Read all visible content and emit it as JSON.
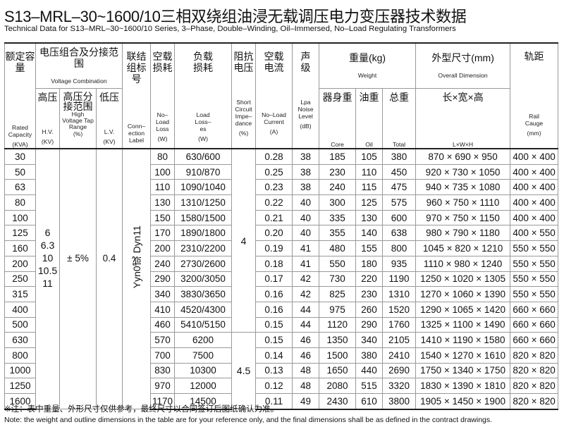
{
  "title": "S13–MRL–30~1600/10三相双绕组油浸无载调压电力变压器技术数据",
  "subtitle": "Technical Data for S13–MRL–30~1600/10 Series, 3–Phase, Double–Winding, Oil–Immersed, No–Load Regulating Transformers",
  "headers": {
    "capacity": {
      "zh": "额定容量",
      "en": "Rated Capacity",
      "unit": "(KVA)"
    },
    "voltage": {
      "zh": "电压组合及分接范围",
      "en": "Voltage Combination"
    },
    "hv": {
      "zh": "高压",
      "en": "H.V.",
      "unit": "(KV)"
    },
    "tap": {
      "zh": "高压分接范围",
      "en": "High Voltage Tap Range",
      "unit": "(%)"
    },
    "lv": {
      "zh": "低压",
      "en": "L.V.",
      "unit": "(KV)"
    },
    "connection": {
      "zh": "联结组标号",
      "en": "Conn–ection Label"
    },
    "noload_loss": {
      "zh": "空载损耗",
      "en": "No–Load Loss",
      "unit": "(W)"
    },
    "load_loss": {
      "zh": "负载损耗",
      "en": "Load Loss–es",
      "unit": "(W)"
    },
    "impedance": {
      "zh": "阻抗电压",
      "en": "Short Circuit Impe–dance",
      "unit": "(%)"
    },
    "noload_current": {
      "zh": "空载电流",
      "en": "No–Load Current",
      "unit": "(A)"
    },
    "noise": {
      "zh": "声级",
      "en": "Lpa Noise Level",
      "unit": "(dB)"
    },
    "weight": {
      "zh": "重量(kg)",
      "en": "Weight"
    },
    "core": {
      "zh": "器身重",
      "en": "Core"
    },
    "oil": {
      "zh": "油重",
      "en": "Oil"
    },
    "total": {
      "zh": "总重",
      "en": "Total"
    },
    "dimension": {
      "zh": "外型尺寸(mm)",
      "en": "Overall Dimension"
    },
    "lwh": {
      "zh": "长×宽×高",
      "en": "L×W×H"
    },
    "rail": {
      "zh": "轨距",
      "en": "Rail Cauge",
      "unit": "(mm)"
    }
  },
  "merged": {
    "hv_values": [
      "6",
      "6.3",
      "10",
      "10.5",
      "11"
    ],
    "tap": "± 5%",
    "lv": "0.4",
    "connection": "Yyn0或 Dyn11",
    "impedance_a": "4",
    "impedance_b": "4.5"
  },
  "rows": [
    {
      "capacity": "30",
      "noload_loss": "80",
      "load_loss": "630/600",
      "noload_current": "0.28",
      "noise": "38",
      "core": "185",
      "oil": "105",
      "total": "380",
      "dimension": "870 × 690 × 950",
      "rail": "400 × 400"
    },
    {
      "capacity": "50",
      "noload_loss": "100",
      "load_loss": "910/870",
      "noload_current": "0.25",
      "noise": "38",
      "core": "230",
      "oil": "110",
      "total": "450",
      "dimension": "920 × 730 × 1050",
      "rail": "400 × 400"
    },
    {
      "capacity": "63",
      "noload_loss": "110",
      "load_loss": "1090/1040",
      "noload_current": "0.23",
      "noise": "38",
      "core": "240",
      "oil": "115",
      "total": "475",
      "dimension": "940 × 735 × 1080",
      "rail": "400 × 400"
    },
    {
      "capacity": "80",
      "noload_loss": "130",
      "load_loss": "1310/1250",
      "noload_current": "0.22",
      "noise": "40",
      "core": "300",
      "oil": "125",
      "total": "575",
      "dimension": "960 × 750 × 1110",
      "rail": "400 × 400"
    },
    {
      "capacity": "100",
      "noload_loss": "150",
      "load_loss": "1580/1500",
      "noload_current": "0.21",
      "noise": "40",
      "core": "335",
      "oil": "130",
      "total": "600",
      "dimension": "970 × 750 × 1150",
      "rail": "400 × 400"
    },
    {
      "capacity": "125",
      "noload_loss": "170",
      "load_loss": "1890/1800",
      "noload_current": "0.20",
      "noise": "40",
      "core": "355",
      "oil": "140",
      "total": "638",
      "dimension": "980 × 790 × 1180",
      "rail": "400 × 550"
    },
    {
      "capacity": "160",
      "noload_loss": "200",
      "load_loss": "2310/2200",
      "noload_current": "0.19",
      "noise": "41",
      "core": "480",
      "oil": "155",
      "total": "800",
      "dimension": "1045 × 820 × 1210",
      "rail": "550 × 550"
    },
    {
      "capacity": "200",
      "noload_loss": "240",
      "load_loss": "2730/2600",
      "noload_current": "0.18",
      "noise": "41",
      "core": "550",
      "oil": "180",
      "total": "935",
      "dimension": "1110 × 980 × 1240",
      "rail": "550 × 550"
    },
    {
      "capacity": "250",
      "noload_loss": "290",
      "load_loss": "3200/3050",
      "noload_current": "0.17",
      "noise": "42",
      "core": "730",
      "oil": "220",
      "total": "1190",
      "dimension": "1250 × 1020 × 1305",
      "rail": "550 × 550"
    },
    {
      "capacity": "315",
      "noload_loss": "340",
      "load_loss": "3830/3650",
      "noload_current": "0.16",
      "noise": "42",
      "core": "825",
      "oil": "230",
      "total": "1310",
      "dimension": "1270 × 1060 × 1390",
      "rail": "550 × 550"
    },
    {
      "capacity": "400",
      "noload_loss": "410",
      "load_loss": "4520/4300",
      "noload_current": "0.16",
      "noise": "44",
      "core": "975",
      "oil": "260",
      "total": "1520",
      "dimension": "1290 × 1065 × 1420",
      "rail": "660 × 660"
    },
    {
      "capacity": "500",
      "noload_loss": "460",
      "load_loss": "5410/5150",
      "noload_current": "0.15",
      "noise": "44",
      "core": "1120",
      "oil": "290",
      "total": "1760",
      "dimension": "1325 × 1100 × 1490",
      "rail": "660 × 660"
    },
    {
      "capacity": "630",
      "noload_loss": "570",
      "load_loss": "6200",
      "noload_current": "0.15",
      "noise": "46",
      "core": "1350",
      "oil": "340",
      "total": "2105",
      "dimension": "1410 × 1190 × 1580",
      "rail": "660 × 660"
    },
    {
      "capacity": "800",
      "noload_loss": "700",
      "load_loss": "7500",
      "noload_current": "0.14",
      "noise": "46",
      "core": "1500",
      "oil": "380",
      "total": "2410",
      "dimension": "1540 × 1270 × 1610",
      "rail": "820 × 820"
    },
    {
      "capacity": "1000",
      "noload_loss": "830",
      "load_loss": "10300",
      "noload_current": "0.13",
      "noise": "48",
      "core": "1650",
      "oil": "440",
      "total": "2690",
      "dimension": "1750 × 1340 × 1750",
      "rail": "820 × 820"
    },
    {
      "capacity": "1250",
      "noload_loss": "970",
      "load_loss": "12000",
      "noload_current": "0.12",
      "noise": "48",
      "core": "2080",
      "oil": "515",
      "total": "3320",
      "dimension": "1830 × 1390 × 1810",
      "rail": "820 × 820"
    },
    {
      "capacity": "1600",
      "noload_loss": "1170",
      "load_loss": "14500",
      "noload_current": "0.11",
      "noise": "49",
      "core": "2430",
      "oil": "610",
      "total": "3800",
      "dimension": "1905 × 1450 × 1900",
      "rail": "820 × 820"
    }
  ],
  "note_zh": "※注：表中重量、外形尺寸仅供参考，最终尺寸以合同签订后图纸确认为准。",
  "note_en": "Note: the weight and outline dimensions in the table are for your reference only, and the final dimensions shall be as defined in the contract drawings."
}
